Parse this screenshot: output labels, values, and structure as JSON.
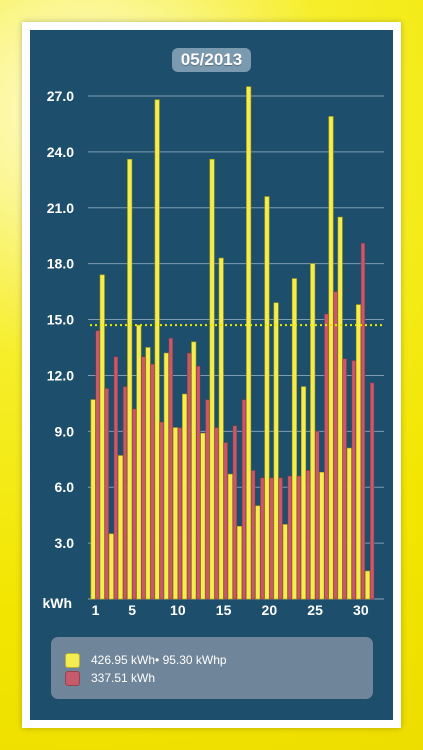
{
  "header": {
    "month": "05/2013"
  },
  "colors": {
    "background": "#1d4f6d",
    "production": "#f3ec52",
    "consumption": "#c75a6a",
    "average_line": "#e8e800",
    "grid": "#8aa5bb"
  },
  "chart_data": {
    "type": "bar",
    "title": "05/2013",
    "xlabel": "",
    "ylabel": "kWh",
    "ylim": [
      0,
      27.0
    ],
    "grid": true,
    "y_ticks": [
      "3.0",
      "6.0",
      "9.0",
      "12.0",
      "15.0",
      "18.0",
      "21.0",
      "24.0",
      "27.0"
    ],
    "x_ticks": [
      "1",
      "5",
      "10",
      "15",
      "20",
      "25",
      "30"
    ],
    "x_tick_days": [
      1,
      5,
      10,
      15,
      20,
      25,
      30
    ],
    "categories": [
      1,
      2,
      3,
      4,
      5,
      6,
      7,
      8,
      9,
      10,
      11,
      12,
      13,
      14,
      15,
      16,
      17,
      18,
      19,
      20,
      21,
      22,
      23,
      24,
      25,
      26,
      27,
      28,
      29,
      30,
      31
    ],
    "series": [
      {
        "values": [
          10.7,
          17.4,
          3.5,
          7.7,
          23.6,
          14.7,
          13.5,
          26.8,
          13.2,
          9.2,
          11.0,
          13.8,
          8.9,
          23.6,
          18.3,
          6.7,
          3.9,
          27.5,
          5.0,
          21.6,
          15.9,
          4.0,
          17.2,
          11.4,
          18.0,
          6.8,
          25.9,
          20.5,
          8.1,
          15.8,
          1.5
        ]
      },
      {
        "values": [
          14.4,
          11.3,
          13.0,
          11.4,
          10.2,
          13.0,
          12.6,
          9.5,
          14.0,
          9.2,
          13.2,
          12.5,
          10.7,
          9.2,
          8.4,
          9.3,
          10.7,
          6.9,
          6.5,
          6.5,
          6.5,
          6.6,
          6.6,
          6.9,
          9.0,
          15.3,
          16.5,
          12.9,
          12.8,
          19.1,
          11.6
        ]
      }
    ],
    "average_line": 14.7,
    "legend": [
      {
        "text": "426.95 kWh• 95.30 kWhp"
      },
      {
        "text": "337.51 kWh"
      }
    ],
    "legend_position": "bottom"
  }
}
